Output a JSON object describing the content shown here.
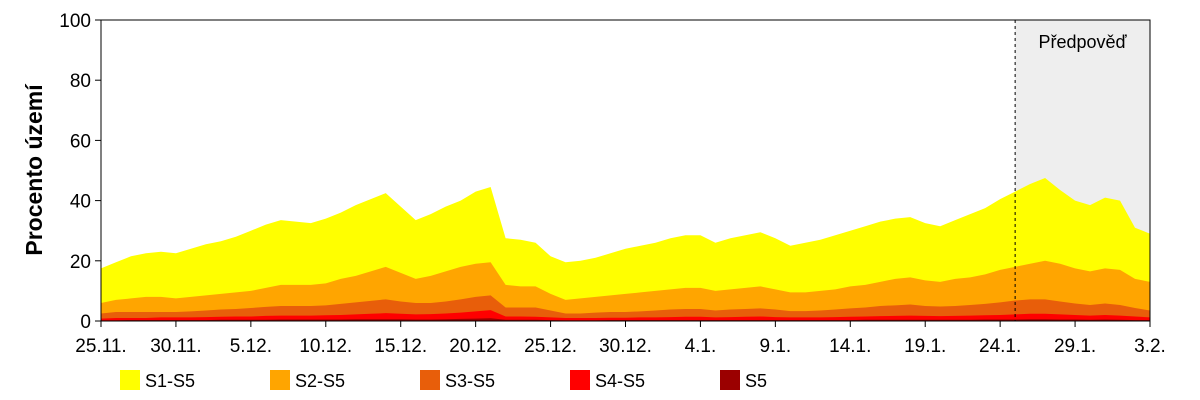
{
  "chart_data": {
    "type": "area",
    "ylabel": "Procento území",
    "xlabel": "",
    "ylim": [
      0,
      100
    ],
    "yticks": [
      0,
      20,
      40,
      60,
      80,
      100
    ],
    "grid": false,
    "legend_position": "bottom",
    "stacked": false,
    "x_start": "25.11.",
    "x_end": "3.2.",
    "xticks": [
      {
        "label": "25.11.",
        "day": 0
      },
      {
        "label": "30.11.",
        "day": 5
      },
      {
        "label": "5.12.",
        "day": 10
      },
      {
        "label": "10.12.",
        "day": 15
      },
      {
        "label": "15.12.",
        "day": 20
      },
      {
        "label": "20.12.",
        "day": 25
      },
      {
        "label": "25.12.",
        "day": 30
      },
      {
        "label": "30.12.",
        "day": 35
      },
      {
        "label": "4.1.",
        "day": 40
      },
      {
        "label": "9.1.",
        "day": 45
      },
      {
        "label": "14.1.",
        "day": 50
      },
      {
        "label": "19.1.",
        "day": 55
      },
      {
        "label": "24.1.",
        "day": 60
      },
      {
        "label": "29.1.",
        "day": 65
      },
      {
        "label": "3.2.",
        "day": 70
      }
    ],
    "forecast": {
      "label": "Předpověď",
      "start_day": 61,
      "end_day": 70
    },
    "series": [
      {
        "name": "S1-S5",
        "color": "#FFFF00",
        "values": [
          17.5,
          19.5,
          21.5,
          22.5,
          23,
          22.5,
          24,
          25.5,
          26.5,
          28,
          30,
          32,
          33.5,
          33,
          32.5,
          34,
          36,
          38.5,
          40.5,
          42.5,
          38,
          33.5,
          35.5,
          38,
          40,
          43,
          44.5,
          27.5,
          27,
          26,
          21.5,
          19.5,
          20,
          21,
          22.5,
          24,
          25,
          26,
          27.5,
          28.5,
          28.5,
          26,
          27.5,
          28.5,
          29.5,
          27.5,
          25,
          26,
          27,
          28.5,
          30,
          31.5,
          33,
          34,
          34.5,
          32.5,
          31.5,
          33.5,
          35.5,
          37.5,
          40.5,
          43,
          45.5,
          47.5,
          43.5,
          40,
          38.5,
          41,
          40,
          31,
          29
        ]
      },
      {
        "name": "S2-S5",
        "color": "#FFA500",
        "values": [
          6,
          7,
          7.5,
          8,
          8,
          7.5,
          8,
          8.5,
          9,
          9.5,
          10,
          11,
          12,
          12,
          12,
          12.5,
          14,
          15,
          16.5,
          18,
          16,
          14,
          15,
          16.5,
          18,
          19,
          19.5,
          12,
          11.5,
          11.5,
          9,
          7,
          7.5,
          8,
          8.5,
          9,
          9.5,
          10,
          10.5,
          11,
          11,
          10,
          10.5,
          11,
          11.5,
          10.5,
          9.5,
          9.5,
          10,
          10.5,
          11.5,
          12,
          13,
          14,
          14.5,
          13.5,
          13,
          14,
          14.5,
          15.5,
          17,
          18,
          19,
          20,
          19,
          17.5,
          16.5,
          17.5,
          17,
          14,
          13
        ]
      },
      {
        "name": "S3-S5",
        "color": "#E85E0A",
        "values": [
          2.5,
          3,
          3,
          3,
          3,
          3,
          3.2,
          3.5,
          3.8,
          4,
          4.3,
          4.7,
          5,
          5,
          5,
          5.2,
          5.7,
          6.2,
          6.7,
          7.2,
          6.5,
          6,
          6,
          6.5,
          7.2,
          8,
          8.5,
          4.5,
          4.5,
          4.5,
          3.5,
          2.5,
          2.5,
          2.8,
          3,
          3,
          3.2,
          3.5,
          3.8,
          4,
          4,
          3.5,
          3.8,
          4,
          4.2,
          3.8,
          3.3,
          3.3,
          3.5,
          3.8,
          4.2,
          4.5,
          5,
          5.2,
          5.5,
          5,
          4.8,
          5,
          5.3,
          5.7,
          6.2,
          6.8,
          7.2,
          7.2,
          6.5,
          5.8,
          5.3,
          5.8,
          5.3,
          4.3,
          3.5
        ]
      },
      {
        "name": "S4-S5",
        "color": "#FF0000",
        "values": [
          0.8,
          1,
          1,
          1,
          1.2,
          1.2,
          1.2,
          1.3,
          1.4,
          1.5,
          1.5,
          1.7,
          1.8,
          1.8,
          1.8,
          1.9,
          2,
          2.2,
          2.4,
          2.6,
          2.4,
          2.2,
          2.3,
          2.5,
          2.8,
          3.2,
          3.6,
          1.5,
          1.5,
          1.4,
          1.2,
          1,
          1,
          1,
          1.1,
          1.1,
          1.2,
          1.2,
          1.3,
          1.4,
          1.4,
          1.2,
          1.3,
          1.4,
          1.5,
          1.3,
          1.2,
          1.2,
          1.2,
          1.3,
          1.4,
          1.5,
          1.6,
          1.7,
          1.8,
          1.7,
          1.6,
          1.7,
          1.8,
          1.9,
          2,
          2.2,
          2.4,
          2.4,
          2.2,
          2,
          1.8,
          2,
          1.8,
          1.5,
          1.2
        ]
      },
      {
        "name": "S5",
        "color": "#9B0000",
        "values": [
          0.2,
          0.2,
          0.3,
          0.3,
          0.3,
          0.3,
          0.3,
          0.3,
          0.4,
          0.4,
          0.4,
          0.4,
          0.5,
          0.5,
          0.5,
          0.5,
          0.5,
          0.6,
          0.6,
          0.6,
          0.6,
          0.5,
          0.5,
          0.6,
          0.7,
          0.8,
          0.9,
          0.4,
          0.4,
          0.4,
          0.3,
          0.2,
          0.2,
          0.2,
          0.3,
          0.3,
          0.3,
          0.3,
          0.3,
          0.3,
          0.3,
          0.3,
          0.3,
          0.3,
          0.3,
          0.3,
          0.3,
          0.3,
          0.3,
          0.3,
          0.3,
          0.4,
          0.4,
          0.4,
          0.4,
          0.4,
          0.4,
          0.4,
          0.4,
          0.5,
          0.5,
          0.5,
          0.6,
          0.6,
          0.5,
          0.5,
          0.4,
          0.5,
          0.4,
          0.3,
          0.3
        ]
      }
    ]
  }
}
